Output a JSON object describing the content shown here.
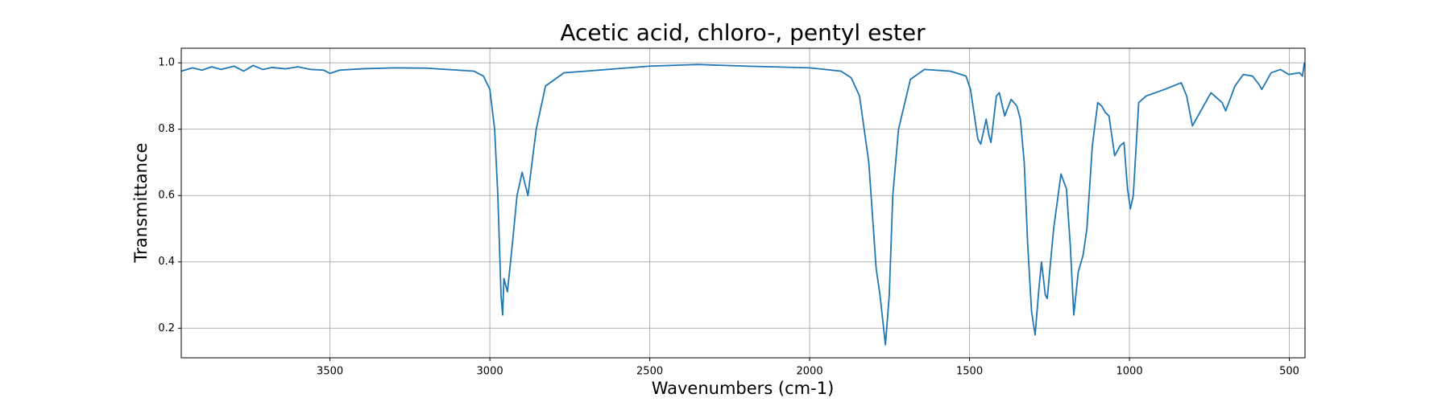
{
  "chart_data": {
    "type": "line",
    "title": "Acetic acid, chloro-, pentyl ester",
    "xlabel": "Wavenumbers (cm-1)",
    "ylabel": "Transmittance",
    "color": "#1f77b4",
    "grid": true,
    "xlim": [
      3965,
      451
    ],
    "ylim": [
      0.111,
      1.044
    ],
    "xticks": [
      3500,
      3000,
      2500,
      2000,
      1500,
      1000,
      500
    ],
    "yticks": [
      0.2,
      0.4,
      0.6,
      0.8,
      {
        "value": 1,
        "label": "1.0"
      }
    ],
    "x": [
      3965,
      3930,
      3900,
      3870,
      3840,
      3800,
      3770,
      3740,
      3710,
      3680,
      3640,
      3600,
      3560,
      3520,
      3500,
      3470,
      3400,
      3300,
      3200,
      3100,
      3050,
      3020,
      3000,
      2985,
      2975,
      2965,
      2960,
      2956,
      2945,
      2930,
      2915,
      2899,
      2881,
      2855,
      2826,
      2768,
      2700,
      2500,
      2350,
      2200,
      2000,
      1902,
      1870,
      1844,
      1815,
      1792,
      1780,
      1763,
      1751,
      1740,
      1722,
      1685,
      1641,
      1560,
      1511,
      1497,
      1474,
      1465,
      1448,
      1439,
      1433,
      1416,
      1407,
      1390,
      1370,
      1352,
      1341,
      1329,
      1318,
      1306,
      1295,
      1283,
      1275,
      1263,
      1257,
      1237,
      1214,
      1197,
      1185,
      1174,
      1160,
      1145,
      1133,
      1116,
      1099,
      1087,
      1075,
      1064,
      1046,
      1029,
      1017,
      1006,
      997,
      988,
      971,
      948,
      890,
      838,
      821,
      803,
      774,
      745,
      710,
      699,
      670,
      644,
      615,
      595,
      586,
      557,
      528,
      502,
      468,
      459,
      453
    ],
    "values": [
      0.975,
      0.985,
      0.978,
      0.988,
      0.98,
      0.99,
      0.975,
      0.992,
      0.98,
      0.986,
      0.982,
      0.988,
      0.98,
      0.978,
      0.968,
      0.978,
      0.982,
      0.985,
      0.984,
      0.978,
      0.975,
      0.96,
      0.92,
      0.8,
      0.6,
      0.3,
      0.24,
      0.35,
      0.31,
      0.45,
      0.6,
      0.67,
      0.6,
      0.8,
      0.93,
      0.97,
      0.975,
      0.99,
      0.995,
      0.99,
      0.985,
      0.975,
      0.955,
      0.9,
      0.7,
      0.38,
      0.3,
      0.15,
      0.3,
      0.6,
      0.8,
      0.95,
      0.98,
      0.975,
      0.96,
      0.92,
      0.77,
      0.755,
      0.83,
      0.78,
      0.76,
      0.9,
      0.91,
      0.84,
      0.89,
      0.87,
      0.83,
      0.7,
      0.45,
      0.25,
      0.18,
      0.32,
      0.4,
      0.3,
      0.29,
      0.5,
      0.665,
      0.62,
      0.45,
      0.24,
      0.37,
      0.42,
      0.5,
      0.75,
      0.88,
      0.87,
      0.85,
      0.84,
      0.72,
      0.75,
      0.76,
      0.62,
      0.56,
      0.6,
      0.88,
      0.9,
      0.92,
      0.94,
      0.9,
      0.81,
      0.86,
      0.91,
      0.88,
      0.855,
      0.93,
      0.965,
      0.96,
      0.935,
      0.92,
      0.97,
      0.98,
      0.965,
      0.97,
      0.96,
      1.0
    ]
  }
}
